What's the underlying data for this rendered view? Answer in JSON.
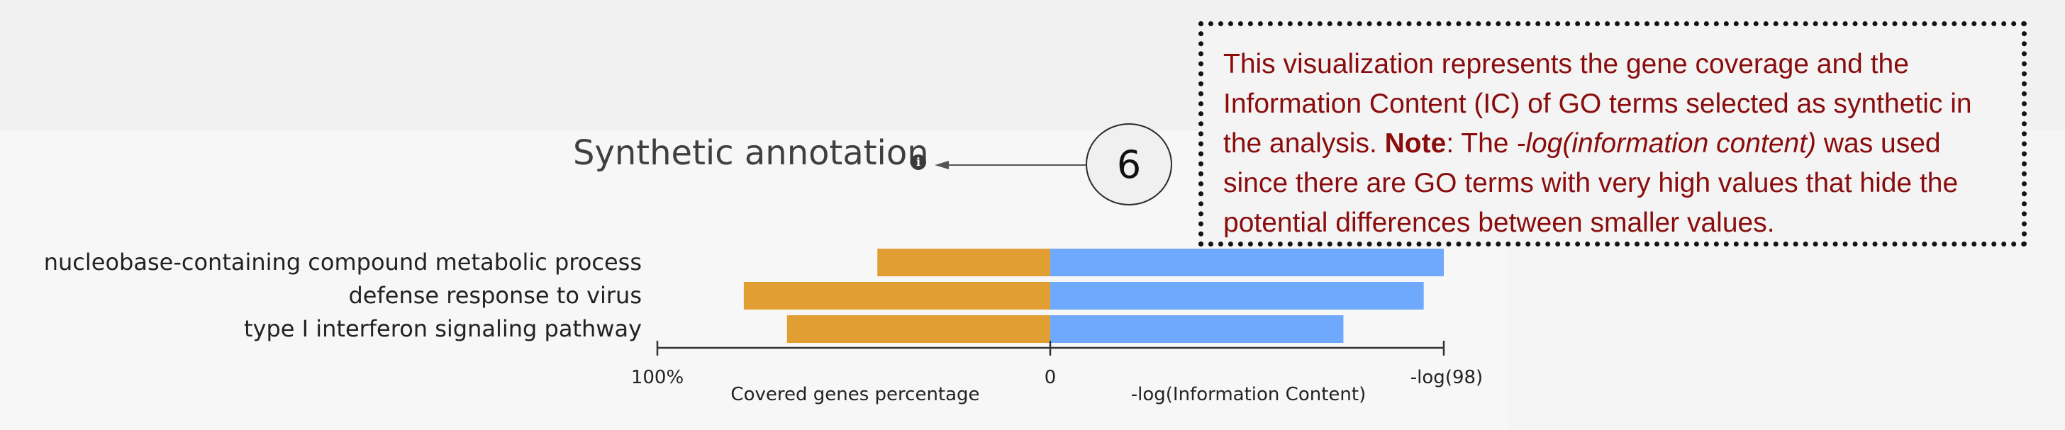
{
  "note": {
    "number": "6",
    "text_before": "This visualization represents the gene coverage and the Information Content (IC) of GO terms selected as synthetic in the analysis.",
    "note_label": "Note",
    "text_mid": ": The ",
    "emphasis": "-log(information content)",
    "text_after": " was used since there are GO terms with very high values that hide the potential differences between smaller values."
  },
  "colors": {
    "coverage_bar": "#e19f33",
    "ic_bar": "#6fa9fe",
    "note_text": "#8a0c0c",
    "axis": "#333333"
  },
  "chart_data": {
    "type": "bar",
    "title": "Synthetic annotation",
    "info_icon": "info-icon",
    "orientation": "horizontal-diverging",
    "categories": [
      "nucleobase-containing compound metabolic process",
      "defense response to virus",
      "type I interferon signaling pathway"
    ],
    "series": [
      {
        "name": "Covered genes percentage",
        "direction": "left",
        "values": [
          44,
          78,
          67
        ]
      },
      {
        "name": "-log(Information Content)",
        "direction": "right",
        "values": [
          98,
          93,
          73
        ]
      }
    ],
    "left_axis": {
      "label": "Covered genes percentage",
      "tick_left": "100%",
      "tick_right": "0",
      "range": [
        100,
        0
      ]
    },
    "right_axis": {
      "label": "-log(Information Content)",
      "tick_right": "-log(98)",
      "range": [
        0,
        98
      ]
    }
  }
}
